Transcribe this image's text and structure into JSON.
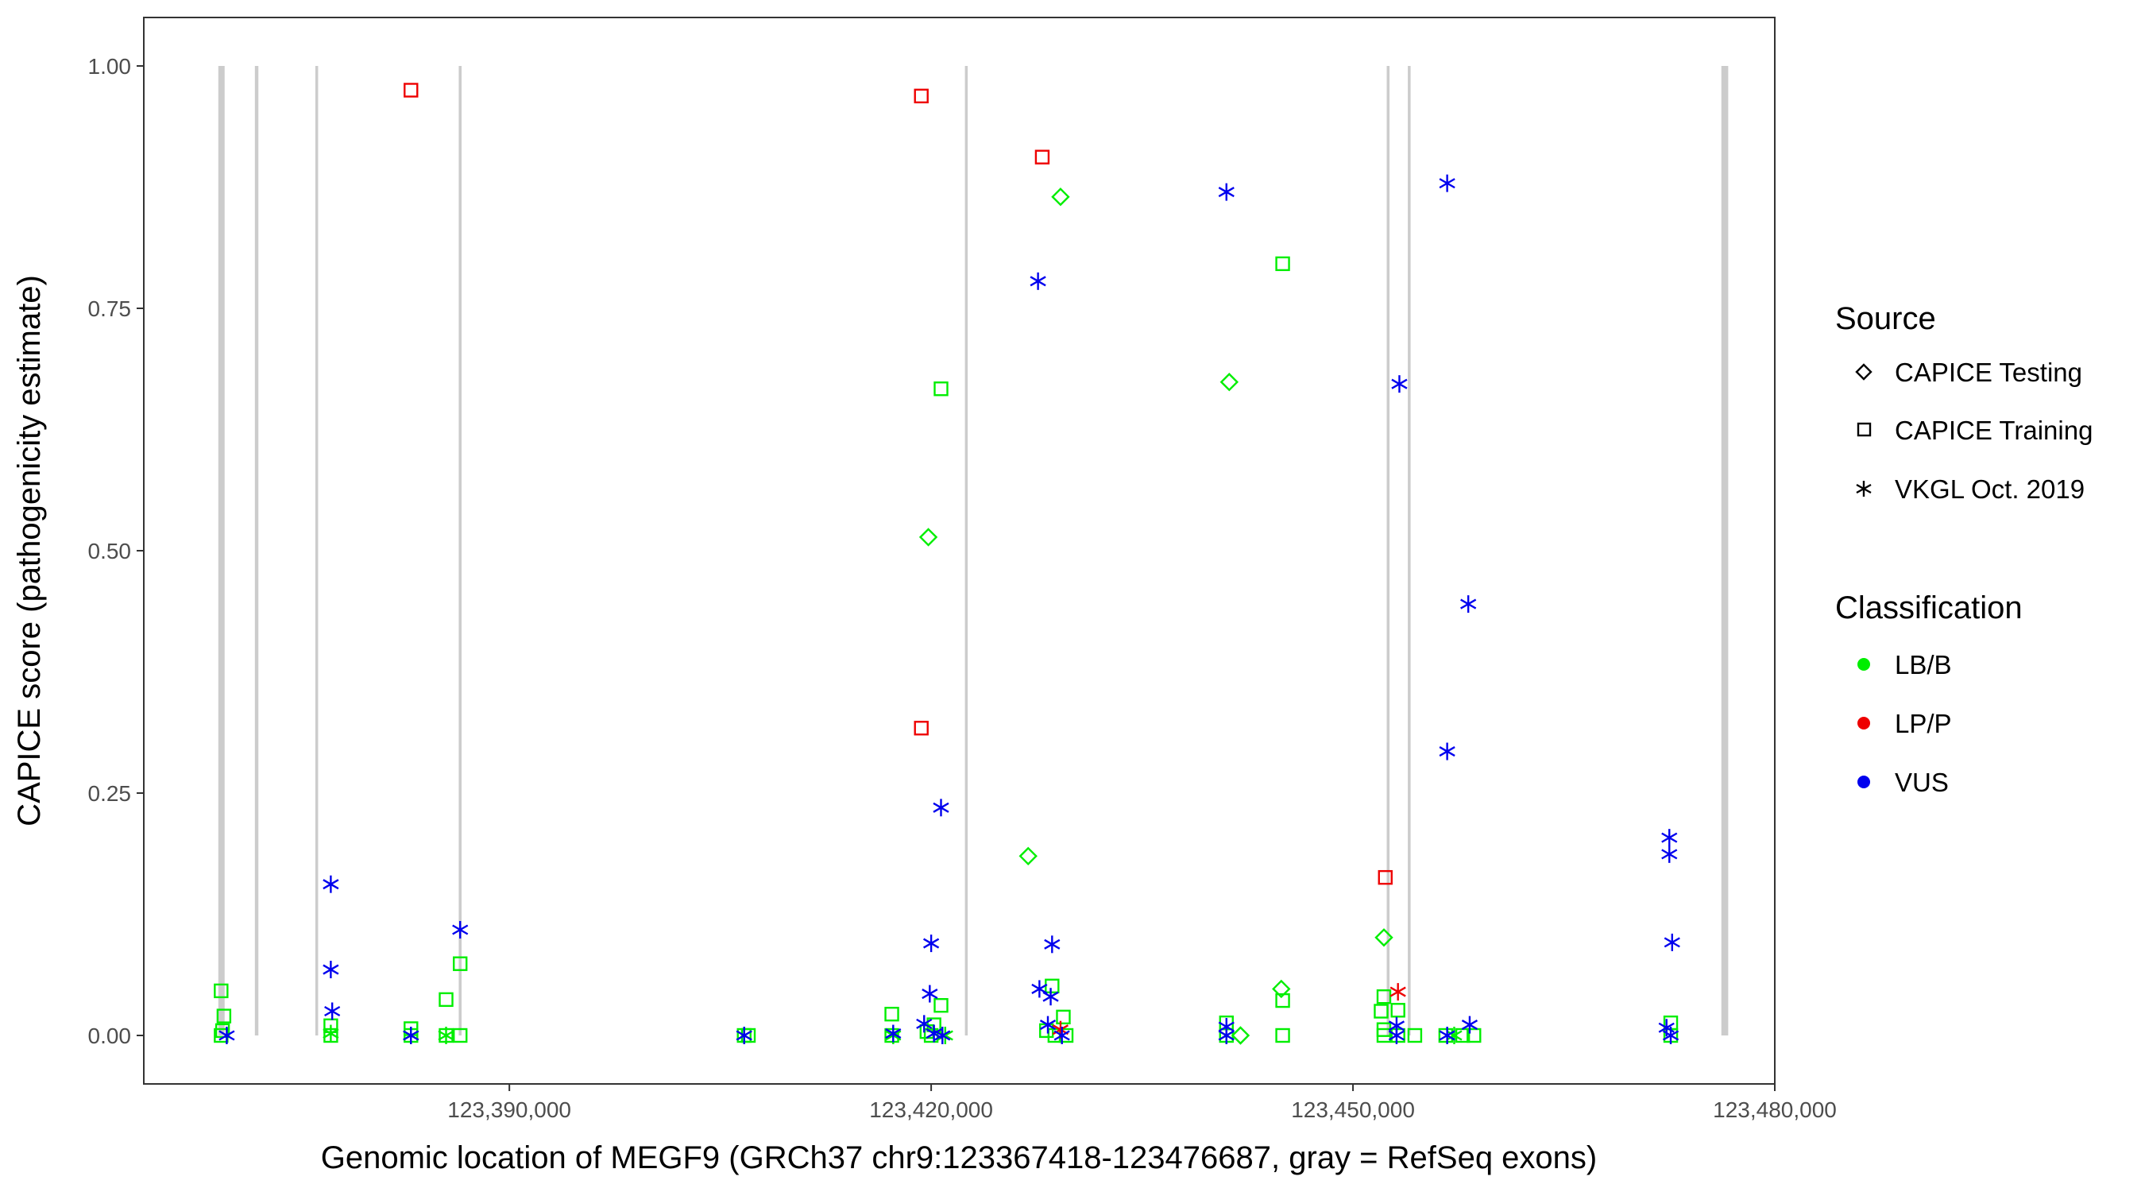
{
  "chart_data": {
    "type": "scatter",
    "xlabel": "Genomic location of MEGF9 (GRCh37 chr9:123367418-123476687, gray = RefSeq exons)",
    "ylabel": "CAPICE score (pathogenicity estimate)",
    "xlim": [
      123364000,
      123480000
    ],
    "ylim": [
      -0.05,
      1.05
    ],
    "x_ticks": [
      123390000,
      123420000,
      123450000,
      123480000
    ],
    "x_tick_labels": [
      "123,390,000",
      "123,420,000",
      "123,450,000",
      "123,480,000"
    ],
    "y_ticks": [
      0,
      0.25,
      0.5,
      0.75,
      1
    ],
    "y_tick_labels": [
      "0.00",
      "0.25",
      "0.50",
      "0.75",
      "1.00"
    ],
    "grid": false,
    "exons": [
      {
        "start": 123369300,
        "end": 123369750
      },
      {
        "start": 123371900,
        "end": 123372150
      },
      {
        "start": 123376200,
        "end": 123376400
      },
      {
        "start": 123386400,
        "end": 123386600
      },
      {
        "start": 123422400,
        "end": 123422600
      },
      {
        "start": 123452400,
        "end": 123452600
      },
      {
        "start": 123453900,
        "end": 123454100
      },
      {
        "start": 123476200,
        "end": 123476687
      }
    ],
    "exon_color": "#cccccc",
    "legend": {
      "position": "right",
      "source": {
        "title": "Source",
        "entries": [
          {
            "label": "CAPICE Testing",
            "shape": "diamond"
          },
          {
            "label": "CAPICE Training",
            "shape": "square"
          },
          {
            "label": "VKGL Oct. 2019",
            "shape": "asterisk"
          }
        ]
      },
      "classification": {
        "title": "Classification",
        "entries": [
          {
            "label": "LB/B",
            "color": "#00ee00"
          },
          {
            "label": "LP/P",
            "color": "#ee0000"
          },
          {
            "label": "VUS",
            "color": "#0000ee"
          }
        ]
      }
    },
    "series": [
      {
        "source": "CAPICE Training",
        "classification": "LB/B",
        "points": [
          [
            123369500,
            0.046
          ],
          [
            123369700,
            0.02
          ],
          [
            123369600,
            0.005
          ],
          [
            123369500,
            0.0
          ],
          [
            123377300,
            0.01
          ],
          [
            123377300,
            0.0
          ],
          [
            123383000,
            0.007
          ],
          [
            123383000,
            0.0
          ],
          [
            123385500,
            0.037
          ],
          [
            123385500,
            0.0
          ],
          [
            123386500,
            0.074
          ],
          [
            123386500,
            0.0
          ],
          [
            123406700,
            0.0
          ],
          [
            123407000,
            0.0
          ],
          [
            123417200,
            0.022
          ],
          [
            123417200,
            0.0
          ],
          [
            123419700,
            0.004
          ],
          [
            123420200,
            0.011
          ],
          [
            123420700,
            0.031
          ],
          [
            123420700,
            0.667
          ],
          [
            123420000,
            0.0
          ],
          [
            123428200,
            0.005
          ],
          [
            123428600,
            0.051
          ],
          [
            123428800,
            0.0
          ],
          [
            123429400,
            0.019
          ],
          [
            123429600,
            0.0
          ],
          [
            123441000,
            0.013
          ],
          [
            123441000,
            0.0
          ],
          [
            123445000,
            0.796
          ],
          [
            123445000,
            0.036
          ],
          [
            123445000,
            0.0
          ],
          [
            123452200,
            0.04
          ],
          [
            123452000,
            0.025
          ],
          [
            123452200,
            0.006
          ],
          [
            123452200,
            0.0
          ],
          [
            123453200,
            0.026
          ],
          [
            123453200,
            0.0
          ],
          [
            123454400,
            0.0
          ],
          [
            123456600,
            0.0
          ],
          [
            123457800,
            0.0
          ],
          [
            123458600,
            0.0
          ],
          [
            123472600,
            0.013
          ],
          [
            123472600,
            0.0
          ]
        ]
      },
      {
        "source": "CAPICE Training",
        "classification": "LP/P",
        "points": [
          [
            123383000,
            0.975
          ],
          [
            123419300,
            0.969
          ],
          [
            123427900,
            0.906
          ],
          [
            123419300,
            0.317
          ],
          [
            123452300,
            0.163
          ]
        ]
      },
      {
        "source": "CAPICE Testing",
        "classification": "LB/B",
        "points": [
          [
            123429200,
            0.865
          ],
          [
            123441200,
            0.674
          ],
          [
            123419800,
            0.514
          ],
          [
            123426900,
            0.185
          ],
          [
            123452200,
            0.101
          ],
          [
            123444900,
            0.048
          ],
          [
            123442000,
            0.0
          ]
        ]
      },
      {
        "source": "VKGL Oct. 2019",
        "classification": "LB/B",
        "points": [
          [
            123377300,
            0.002
          ],
          [
            123383000,
            0.0
          ],
          [
            123385500,
            0.0
          ],
          [
            123406700,
            0.0
          ],
          [
            123417300,
            0.0
          ],
          [
            123421000,
            0.0
          ],
          [
            123441000,
            0.0
          ],
          [
            123457200,
            0.0
          ]
        ]
      },
      {
        "source": "VKGL Oct. 2019",
        "classification": "LP/P",
        "points": [
          [
            123453200,
            0.045
          ],
          [
            123429200,
            0.006
          ]
        ]
      },
      {
        "source": "VKGL Oct. 2019",
        "classification": "VUS",
        "points": [
          [
            123369900,
            0.0
          ],
          [
            123377300,
            0.156
          ],
          [
            123377300,
            0.068
          ],
          [
            123377400,
            0.025
          ],
          [
            123383000,
            0.0
          ],
          [
            123386500,
            0.109
          ],
          [
            123406700,
            0.0
          ],
          [
            123417300,
            0.002
          ],
          [
            123420000,
            0.095
          ],
          [
            123420700,
            0.235
          ],
          [
            123419900,
            0.043
          ],
          [
            123419500,
            0.012
          ],
          [
            123420200,
            0.002
          ],
          [
            123420800,
            0.0
          ],
          [
            123427600,
            0.778
          ],
          [
            123427700,
            0.048
          ],
          [
            123428600,
            0.094
          ],
          [
            123428500,
            0.04
          ],
          [
            123428300,
            0.011
          ],
          [
            123429300,
            0.0
          ],
          [
            123441000,
            0.87
          ],
          [
            123441000,
            0.009
          ],
          [
            123441000,
            0.0
          ],
          [
            123453300,
            0.672
          ],
          [
            123453100,
            0.01
          ],
          [
            123453100,
            0.0
          ],
          [
            123456700,
            0.879
          ],
          [
            123458200,
            0.445
          ],
          [
            123456700,
            0.293
          ],
          [
            123458300,
            0.011
          ],
          [
            123456700,
            0.0
          ],
          [
            123472500,
            0.204
          ],
          [
            123472500,
            0.187
          ],
          [
            123472700,
            0.096
          ],
          [
            123472300,
            0.008
          ],
          [
            123472600,
            0.0
          ]
        ]
      }
    ]
  }
}
